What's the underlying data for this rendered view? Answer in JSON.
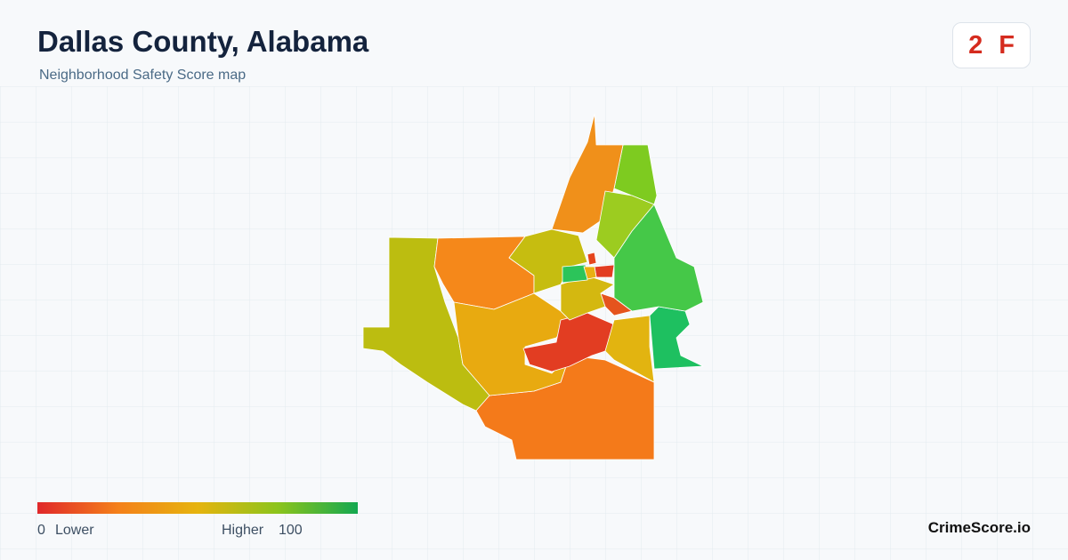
{
  "header": {
    "title": "Dallas County, Alabama",
    "subtitle": "Neighborhood Safety Score map"
  },
  "badge": {
    "score": 2,
    "grade": "F"
  },
  "legend": {
    "min": 0,
    "min_label": "Lower",
    "max_label": "Higher",
    "max": 100
  },
  "brand": "CrimeScore.io"
}
